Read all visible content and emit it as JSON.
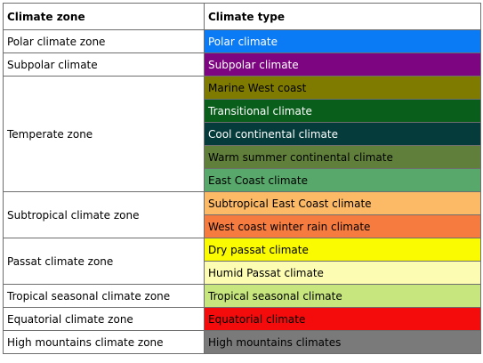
{
  "headers": {
    "zone": "Climate zone",
    "type": "Climate type"
  },
  "groups": [
    {
      "zone": "Polar climate zone",
      "types": [
        {
          "label": "Polar climate",
          "color": "#0a7af5",
          "text_color": "#ffffff"
        }
      ]
    },
    {
      "zone": "Subpolar climate",
      "types": [
        {
          "label": "Subpolar climate",
          "color": "#7d0581",
          "text_color": "#ffffff"
        }
      ]
    },
    {
      "zone": "Temperate zone",
      "types": [
        {
          "label": "Marine West coast",
          "color": "#7f7a00",
          "text_color": "#000000"
        },
        {
          "label": "Transitional climate",
          "color": "#0a5e1c",
          "text_color": "#ffffff"
        },
        {
          "label": "Cool continental climate",
          "color": "#053b3b",
          "text_color": "#ffffff"
        },
        {
          "label": "Warm summer continental climate",
          "color": "#5f7f3b",
          "text_color": "#000000"
        },
        {
          "label": "East Coast climate",
          "color": "#58a86b",
          "text_color": "#000000"
        }
      ]
    },
    {
      "zone": "Subtropical climate zone",
      "types": [
        {
          "label": "Subtropical East Coast climate",
          "color": "#fcb966",
          "text_color": "#000000"
        },
        {
          "label": "West coast winter rain climate",
          "color": "#f67b3e",
          "text_color": "#000000"
        }
      ]
    },
    {
      "zone": "Passat climate zone",
      "types": [
        {
          "label": "Dry passat climate",
          "color": "#fafa00",
          "text_color": "#000000"
        },
        {
          "label": "Humid Passat climate",
          "color": "#fcfcb3",
          "text_color": "#000000"
        }
      ]
    },
    {
      "zone": "Tropical seasonal climate zone",
      "types": [
        {
          "label": "Tropical seasonal climate",
          "color": "#c7e77e",
          "text_color": "#000000"
        }
      ]
    },
    {
      "zone": "Equatorial climate zone",
      "types": [
        {
          "label": "Equatorial climate",
          "color": "#f40c0c",
          "text_color": "#000000"
        }
      ]
    },
    {
      "zone": "High mountains climate zone",
      "types": [
        {
          "label": "High mountains climates",
          "color": "#7a7a7a",
          "text_color": "#000000"
        }
      ]
    }
  ]
}
